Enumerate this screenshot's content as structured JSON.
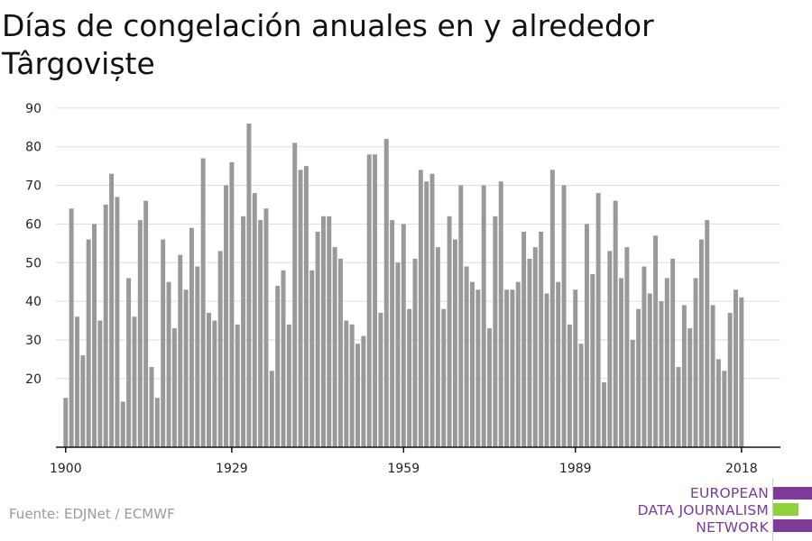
{
  "title": "Días de congelación anuales en y alrededor Târgoviște",
  "source": "Fuente: EDJNet / ECMWF",
  "logo": {
    "lines": [
      "EUROPEAN",
      "DATA JOURNALISM",
      "NETWORK"
    ],
    "colors": {
      "purple": "#7b3b97",
      "green": "#8fd13f"
    }
  },
  "colors": {
    "bar": "#999999",
    "grid": "#dddddd",
    "axis": "#111111"
  },
  "chart_data": {
    "type": "bar",
    "title": "Días de congelación anuales en y alrededor Târgoviște",
    "xlabel": "",
    "ylabel": "",
    "ylim": [
      12,
      92
    ],
    "yticks": [
      20,
      30,
      40,
      50,
      60,
      70,
      80,
      90
    ],
    "xticks": [
      1900,
      1929,
      1959,
      1989,
      2018
    ],
    "grid": true,
    "legend": "none",
    "x_start": 1900,
    "x_end": 2020,
    "values": [
      15,
      64,
      36,
      26,
      56,
      60,
      35,
      65,
      73,
      67,
      14,
      46,
      36,
      61,
      66,
      23,
      15,
      56,
      45,
      33,
      52,
      43,
      59,
      49,
      77,
      37,
      35,
      53,
      70,
      76,
      34,
      62,
      86,
      68,
      61,
      64,
      22,
      44,
      48,
      34,
      81,
      74,
      75,
      48,
      58,
      62,
      62,
      54,
      51,
      35,
      34,
      29,
      31,
      78,
      78,
      37,
      82,
      61,
      50,
      60,
      38,
      51,
      74,
      71,
      73,
      54,
      38,
      62,
      56,
      70,
      49,
      45,
      43,
      70,
      33,
      62,
      71,
      43,
      43,
      45,
      58,
      51,
      54,
      58,
      42,
      74,
      45,
      70,
      34,
      43,
      29,
      60,
      47,
      68,
      19,
      53,
      66,
      46,
      54,
      30,
      38,
      49,
      42,
      57,
      40,
      46,
      51,
      23,
      39,
      33,
      46,
      56,
      61,
      39,
      25,
      22,
      37,
      43,
      41
    ]
  }
}
